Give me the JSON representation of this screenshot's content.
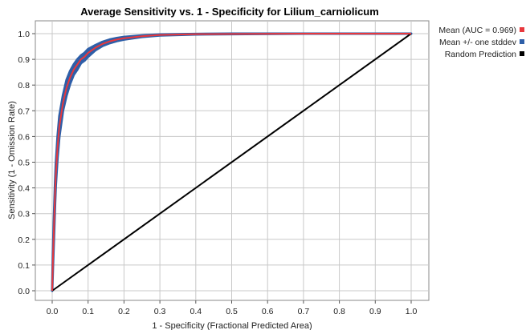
{
  "chart_data": {
    "type": "line",
    "title": "Average Sensitivity vs. 1 - Specificity for Lilium_carniolicum",
    "xlabel": "1 - Specificity (Fractional Predicted Area)",
    "ylabel": "Sensitivity (1 - Omission Rate)",
    "xlim": [
      0,
      1
    ],
    "ylim": [
      0,
      1
    ],
    "x_ticks": [
      "0.0",
      "0.1",
      "0.2",
      "0.3",
      "0.4",
      "0.5",
      "0.6",
      "0.7",
      "0.8",
      "0.9",
      "1.0"
    ],
    "y_ticks": [
      "0.0",
      "0.1",
      "0.2",
      "0.3",
      "0.4",
      "0.5",
      "0.6",
      "0.7",
      "0.8",
      "0.9",
      "1.0"
    ],
    "grid": true,
    "legend_position": "right",
    "series": [
      {
        "name": "Mean (AUC = 0.969)",
        "color": "#e8383d",
        "x": [
          0,
          0.002,
          0.005,
          0.008,
          0.01,
          0.015,
          0.02,
          0.03,
          0.04,
          0.05,
          0.06,
          0.07,
          0.08,
          0.09,
          0.1,
          0.12,
          0.14,
          0.16,
          0.18,
          0.2,
          0.25,
          0.3,
          0.4,
          0.5,
          0.7,
          1.0
        ],
        "y": [
          0,
          0.12,
          0.25,
          0.38,
          0.45,
          0.56,
          0.64,
          0.73,
          0.79,
          0.83,
          0.86,
          0.88,
          0.9,
          0.91,
          0.925,
          0.945,
          0.96,
          0.97,
          0.977,
          0.982,
          0.99,
          0.995,
          0.998,
          0.999,
          1.0,
          1.0
        ]
      },
      {
        "name": "Mean +/- one stddev",
        "color": "#2e5fa8",
        "x": [
          0,
          0.002,
          0.005,
          0.008,
          0.01,
          0.015,
          0.02,
          0.03,
          0.04,
          0.05,
          0.06,
          0.07,
          0.08,
          0.09,
          0.1,
          0.12,
          0.14,
          0.16,
          0.18,
          0.2,
          0.25,
          0.3,
          0.4,
          0.5,
          0.7,
          1.0
        ],
        "upper": [
          0,
          0.15,
          0.29,
          0.42,
          0.49,
          0.6,
          0.68,
          0.76,
          0.82,
          0.855,
          0.88,
          0.9,
          0.915,
          0.925,
          0.94,
          0.955,
          0.968,
          0.977,
          0.983,
          0.987,
          0.993,
          0.997,
          0.999,
          1.0,
          1.0,
          1.0
        ],
        "lower": [
          0,
          0.09,
          0.21,
          0.34,
          0.41,
          0.52,
          0.6,
          0.7,
          0.76,
          0.805,
          0.84,
          0.86,
          0.885,
          0.895,
          0.91,
          0.935,
          0.952,
          0.963,
          0.971,
          0.977,
          0.987,
          0.993,
          0.997,
          0.998,
          1.0,
          1.0
        ]
      },
      {
        "name": "Random Prediction",
        "color": "#000000",
        "x": [
          0,
          1
        ],
        "y": [
          0,
          1
        ]
      }
    ]
  }
}
